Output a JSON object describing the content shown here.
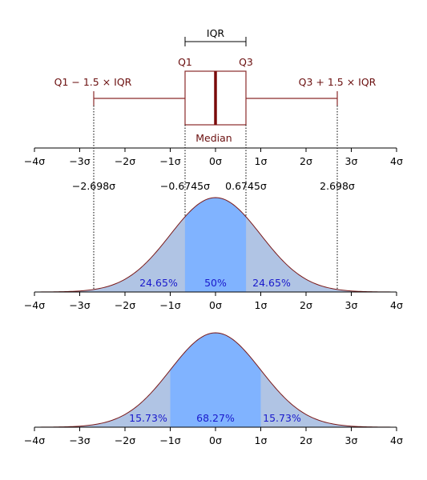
{
  "boxplot": {
    "iqr_label": "IQR",
    "q1_label": "Q1",
    "q3_label": "Q3",
    "lower_fence_label": "Q1 − 1.5 × IQR",
    "upper_fence_label": "Q3 + 1.5 × IQR",
    "median_label": "Median",
    "q1": -0.6745,
    "q3": 0.6745,
    "median": 0,
    "lower_whisker": -2.698,
    "upper_whisker": 2.698
  },
  "axis_ticks": [
    "−4σ",
    "−3σ",
    "−2σ",
    "−1σ",
    "0σ",
    "1σ",
    "2σ",
    "3σ",
    "4σ"
  ],
  "marker_labels": [
    "−2.698σ",
    "−0.6745σ",
    "0.6745σ",
    "2.698σ"
  ],
  "middle_curve": {
    "left_pct": "24.65%",
    "center_pct": "50%",
    "right_pct": "24.65%",
    "inner_bounds": [
      -0.6745,
      0.6745
    ],
    "outer_bounds": [
      -2.698,
      2.698
    ]
  },
  "bottom_curve": {
    "left_pct": "15.73%",
    "center_pct": "68.27%",
    "right_pct": "15.73%",
    "inner_bounds": [
      -1,
      1
    ]
  },
  "colors": {
    "outline": "#7a1a1a",
    "light_fill": "#b0c4e4",
    "dark_fill": "#80b3ff",
    "percent_text": "#1a1acc"
  }
}
